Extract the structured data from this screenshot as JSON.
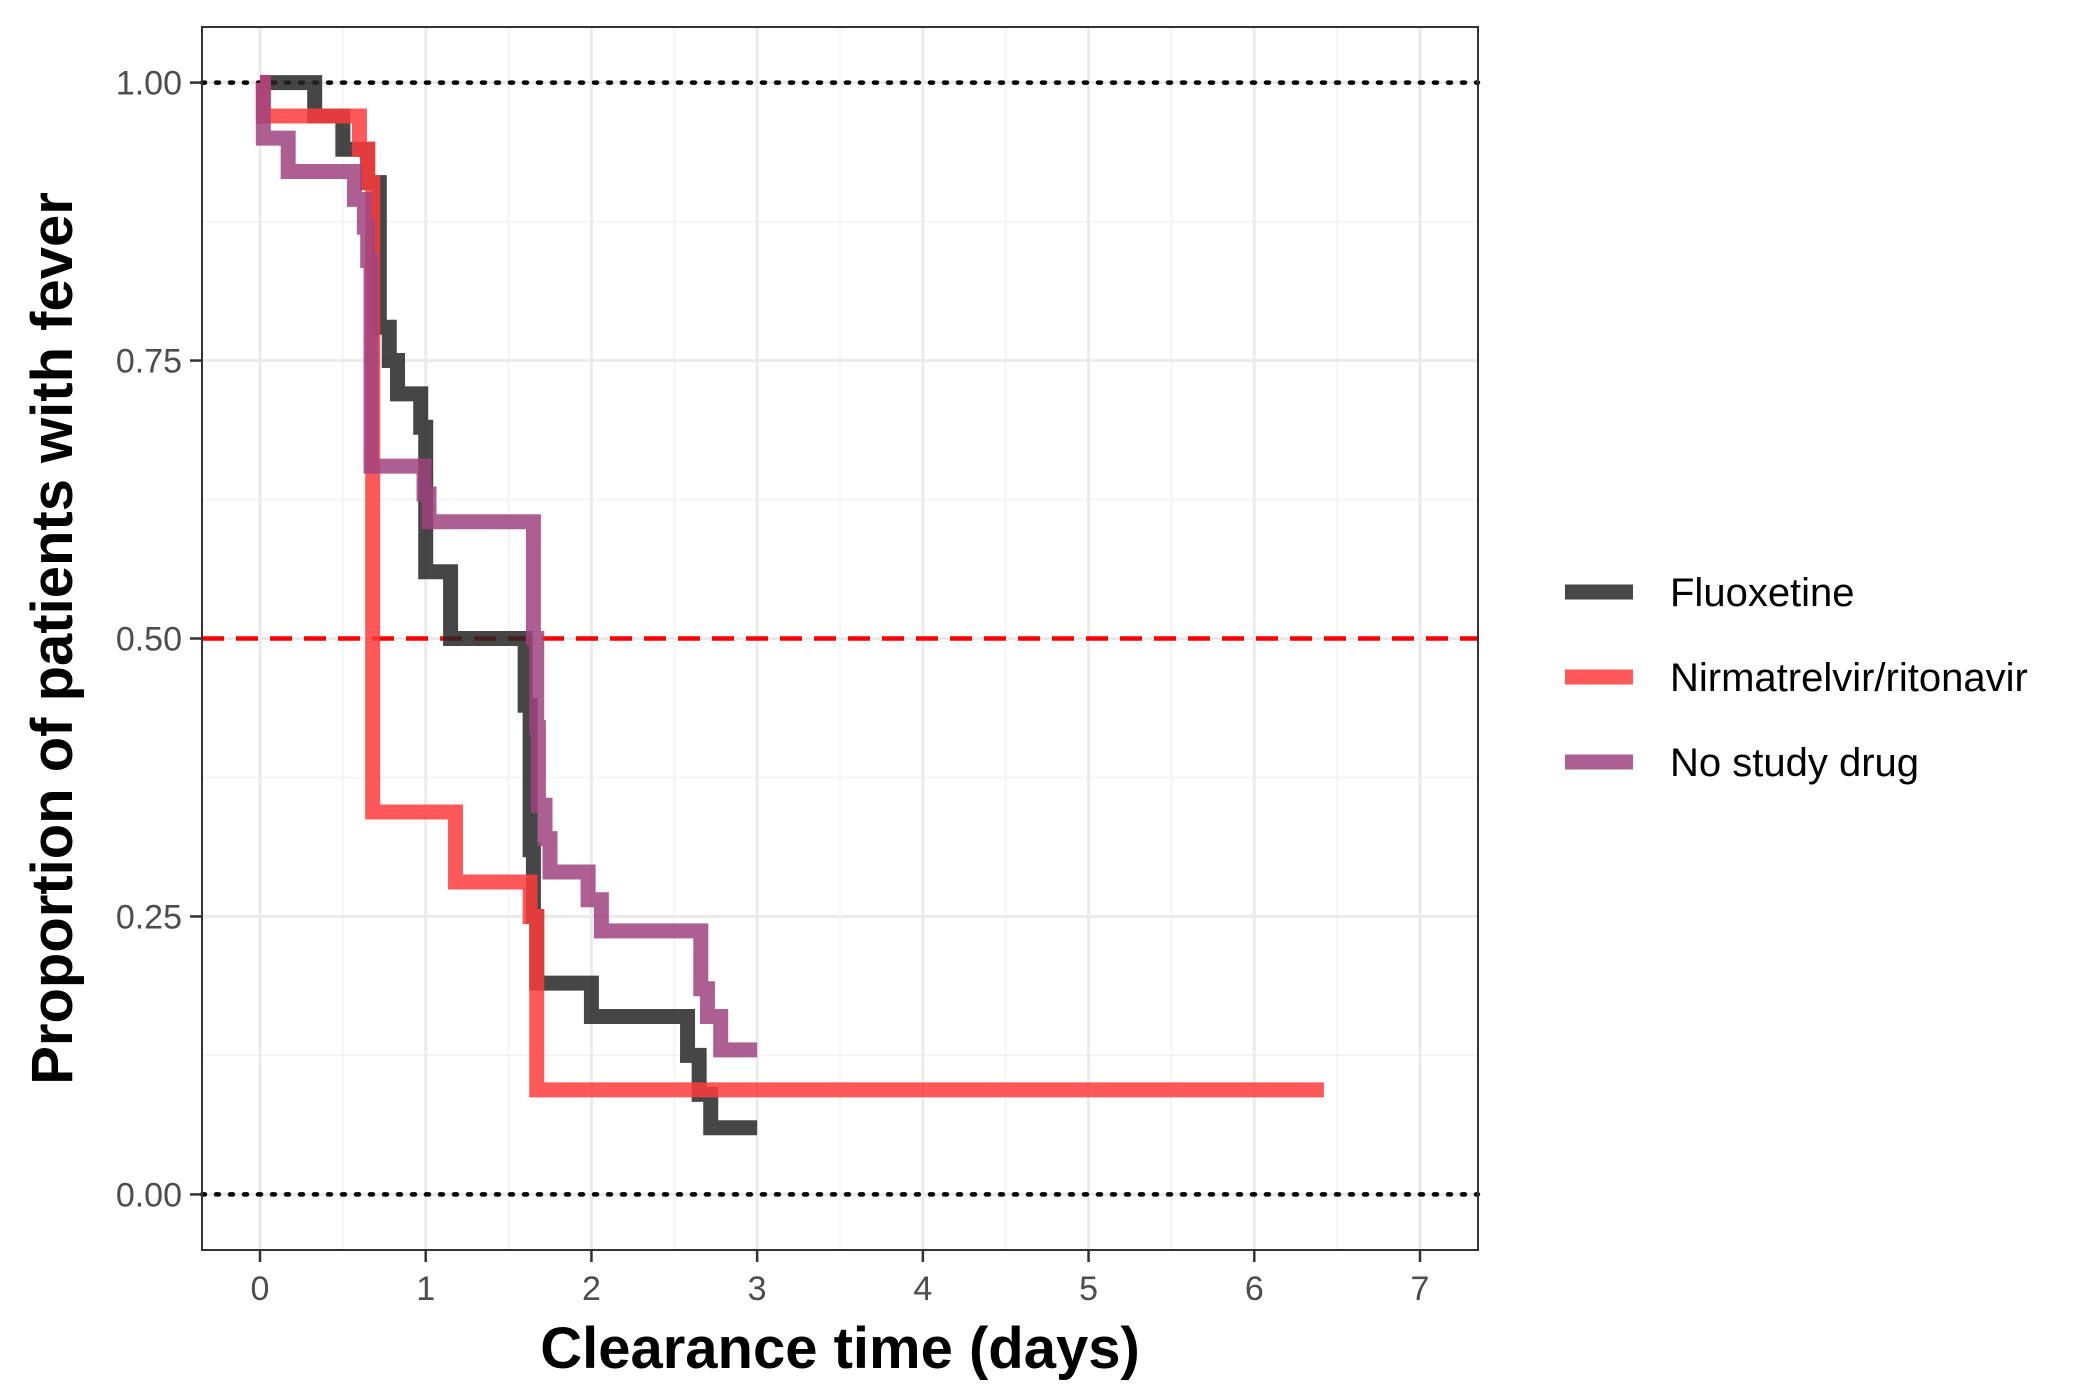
{
  "chart_data": {
    "type": "line",
    "step": true,
    "xlabel": "Clearance time (days)",
    "ylabel": "Proportion of patients with fever",
    "xlim": [
      -0.35,
      7.35
    ],
    "ylim": [
      -0.05,
      1.05
    ],
    "x_ticks": [
      0,
      1,
      2,
      3,
      4,
      5,
      6,
      7
    ],
    "x_tick_labels": [
      "0",
      "1",
      "2",
      "3",
      "4",
      "5",
      "6",
      "7"
    ],
    "y_ticks": [
      0,
      0.25,
      0.5,
      0.75,
      1.0
    ],
    "y_tick_labels": [
      "0.00",
      "0.25",
      "0.50",
      "0.75",
      "1.00"
    ],
    "grid": true,
    "legend_position": "right",
    "reference_lines": [
      {
        "y": 1.0,
        "style": "dotted",
        "color": "#000000"
      },
      {
        "y": 0.0,
        "style": "dotted",
        "color": "#000000"
      },
      {
        "y": 0.5,
        "style": "dashed",
        "color": "#ff0000"
      }
    ],
    "series": [
      {
        "name": "Fluoxetine",
        "color": "#262626",
        "x": [
          0,
          0.33,
          0.5,
          0.58,
          0.65,
          0.72,
          0.78,
          0.83,
          0.97,
          1.0,
          1.15,
          1.6,
          1.63,
          1.65,
          1.67,
          2.0,
          2.58,
          2.65,
          2.72,
          3.0
        ],
        "y": [
          1.0,
          0.97,
          0.94,
          0.94,
          0.91,
          0.78,
          0.75,
          0.72,
          0.69,
          0.56,
          0.5,
          0.44,
          0.31,
          0.25,
          0.19,
          0.16,
          0.125,
          0.09,
          0.06,
          0.06
        ]
      },
      {
        "name": "Nirmatrelvir/ritonavir",
        "color": "#ff3b3b",
        "x": [
          0,
          0.02,
          0.6,
          0.65,
          0.68,
          1.18,
          1.63,
          1.67,
          6.42
        ],
        "y": [
          1.0,
          0.97,
          0.94,
          0.91,
          0.344,
          0.281,
          0.25,
          0.094,
          0.094
        ]
      },
      {
        "name": "No study drug",
        "color": "#a0437f",
        "x": [
          0,
          0.02,
          0.17,
          0.57,
          0.63,
          0.65,
          0.67,
          0.99,
          1.02,
          1.65,
          1.67,
          1.68,
          1.72,
          1.75,
          1.98,
          2.06,
          2.66,
          2.7,
          2.78,
          3.0
        ],
        "y": [
          1.0,
          0.95,
          0.92,
          0.895,
          0.87,
          0.84,
          0.655,
          0.63,
          0.605,
          0.5,
          0.42,
          0.35,
          0.32,
          0.29,
          0.265,
          0.237,
          0.185,
          0.16,
          0.13,
          0.13
        ]
      }
    ]
  }
}
